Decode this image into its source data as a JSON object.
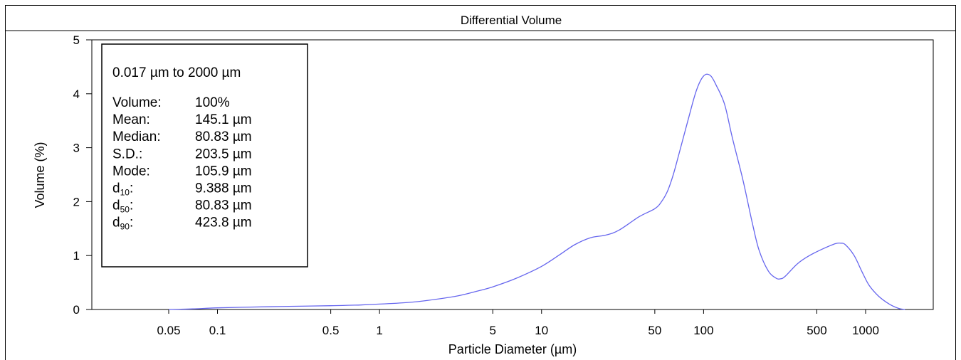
{
  "chart_data": {
    "type": "line",
    "title": "Differential Volume",
    "xlabel": "Particle Diameter (µm)",
    "ylabel": "Volume (%)",
    "x_scale": "log",
    "xlim": [
      0.017,
      2000
    ],
    "ylim": [
      0,
      5
    ],
    "x_ticks": [
      0.05,
      0.1,
      0.5,
      1,
      5,
      10,
      50,
      100,
      500,
      1000
    ],
    "x_tick_labels": [
      "0.05",
      "0.1",
      "0.5",
      "1",
      "5",
      "10",
      "50",
      "100",
      "500",
      "1000"
    ],
    "y_ticks": [
      0,
      1,
      2,
      3,
      4,
      5
    ],
    "y_tick_labels": [
      "0",
      "1",
      "2",
      "3",
      "4",
      "5"
    ],
    "grid": false,
    "line_color": "#6666ee",
    "series": [
      {
        "points": [
          [
            0.05,
            0.0
          ],
          [
            0.07,
            0.01
          ],
          [
            0.1,
            0.03
          ],
          [
            0.2,
            0.05
          ],
          [
            0.3,
            0.06
          ],
          [
            0.5,
            0.07
          ],
          [
            0.7,
            0.08
          ],
          [
            1,
            0.1
          ],
          [
            1.5,
            0.13
          ],
          [
            2,
            0.17
          ],
          [
            3,
            0.25
          ],
          [
            4,
            0.34
          ],
          [
            5,
            0.42
          ],
          [
            7,
            0.58
          ],
          [
            10,
            0.8
          ],
          [
            13,
            1.02
          ],
          [
            16,
            1.2
          ],
          [
            20,
            1.33
          ],
          [
            25,
            1.38
          ],
          [
            30,
            1.47
          ],
          [
            40,
            1.72
          ],
          [
            50,
            1.87
          ],
          [
            55,
            2.0
          ],
          [
            60,
            2.2
          ],
          [
            65,
            2.5
          ],
          [
            70,
            2.85
          ],
          [
            80,
            3.5
          ],
          [
            90,
            4.05
          ],
          [
            100,
            4.33
          ],
          [
            110,
            4.34
          ],
          [
            120,
            4.15
          ],
          [
            135,
            3.8
          ],
          [
            150,
            3.2
          ],
          [
            175,
            2.4
          ],
          [
            200,
            1.6
          ],
          [
            220,
            1.1
          ],
          [
            250,
            0.72
          ],
          [
            280,
            0.58
          ],
          [
            300,
            0.57
          ],
          [
            320,
            0.62
          ],
          [
            380,
            0.85
          ],
          [
            450,
            1.0
          ],
          [
            550,
            1.13
          ],
          [
            650,
            1.22
          ],
          [
            700,
            1.23
          ],
          [
            750,
            1.2
          ],
          [
            850,
            1.0
          ],
          [
            950,
            0.7
          ],
          [
            1050,
            0.45
          ],
          [
            1200,
            0.25
          ],
          [
            1400,
            0.1
          ],
          [
            1600,
            0.02
          ],
          [
            1750,
            0.0
          ]
        ]
      }
    ],
    "stats_box": {
      "range": "0.017 µm to 2000 µm",
      "rows": [
        {
          "key": "Volume:",
          "value": "100%"
        },
        {
          "key": "Mean:",
          "value": "145.1 µm"
        },
        {
          "key": "Median:",
          "value": "80.83 µm"
        },
        {
          "key": "S.D.:",
          "value": "203.5 µm"
        },
        {
          "key": "Mode:",
          "value": "105.9 µm"
        },
        {
          "key": "d",
          "sub": "10",
          "suffix": ":",
          "value": "9.388 µm"
        },
        {
          "key": "d",
          "sub": "50",
          "suffix": ":",
          "value": "80.83 µm"
        },
        {
          "key": "d",
          "sub": "90",
          "suffix": ":",
          "value": "423.8 µm"
        }
      ]
    }
  }
}
